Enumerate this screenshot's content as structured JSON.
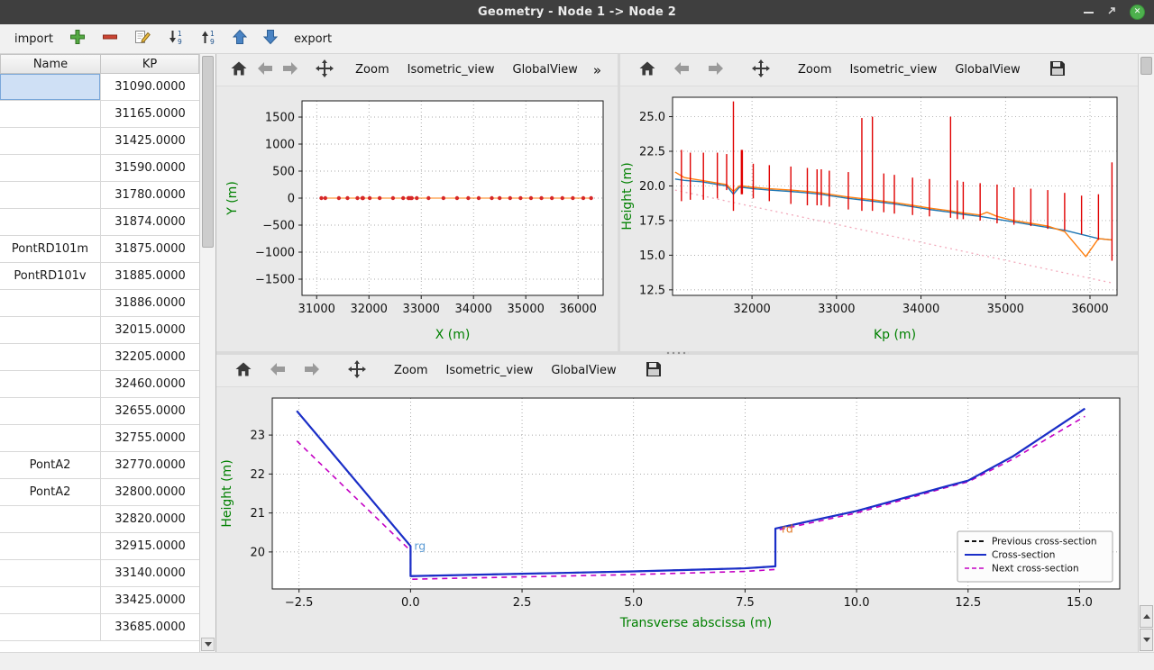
{
  "titlebar": {
    "title": "Geometry - Node 1 -> Node 2"
  },
  "app_toolbar": {
    "import_label": "import",
    "export_label": "export"
  },
  "icons": {
    "add-icon": "green plus",
    "remove-icon": "red minus",
    "edit-icon": "pencil on paper",
    "sort-descending-icon": "down arrow 1-9",
    "sort-ascending-icon": "up arrow 1-9",
    "move-up-icon": "blue up arrow",
    "move-down-icon": "blue down arrow",
    "home-icon": "house",
    "back-icon": "left arrow",
    "forward-icon": "right arrow",
    "pan-icon": "four way arrows",
    "save-icon": "floppy disk",
    "minimize-icon": "dash",
    "maximize-icon": "diagonal arrow",
    "close-icon": "green circle x",
    "scroll-up-icon": "triangle up",
    "scroll-down-icon": "triangle down"
  },
  "mpl_toolbar": {
    "zoom": "Zoom",
    "isometric": "Isometric_view",
    "global_view": "GlobalView",
    "overflow": "»"
  },
  "table": {
    "headers": [
      "Name",
      "KP"
    ],
    "rows": [
      {
        "name": "",
        "kp": "31090.0000"
      },
      {
        "name": "",
        "kp": "31165.0000"
      },
      {
        "name": "",
        "kp": "31425.0000"
      },
      {
        "name": "",
        "kp": "31590.0000"
      },
      {
        "name": "",
        "kp": "31780.0000"
      },
      {
        "name": "",
        "kp": "31874.0000"
      },
      {
        "name": "PontRD101m",
        "kp": "31875.0000"
      },
      {
        "name": "PontRD101v",
        "kp": "31885.0000"
      },
      {
        "name": "",
        "kp": "31886.0000"
      },
      {
        "name": "",
        "kp": "32015.0000"
      },
      {
        "name": "",
        "kp": "32205.0000"
      },
      {
        "name": "",
        "kp": "32460.0000"
      },
      {
        "name": "",
        "kp": "32655.0000"
      },
      {
        "name": "",
        "kp": "32755.0000"
      },
      {
        "name": "PontA2",
        "kp": "32770.0000"
      },
      {
        "name": "PontA2",
        "kp": "32800.0000"
      },
      {
        "name": "",
        "kp": "32820.0000"
      },
      {
        "name": "",
        "kp": "32915.0000"
      },
      {
        "name": "",
        "kp": "33140.0000"
      },
      {
        "name": "",
        "kp": "33425.0000"
      },
      {
        "name": "",
        "kp": "33685.0000"
      }
    ]
  },
  "chart_data": [
    {
      "type": "line",
      "title": "",
      "xlabel": "X (m)",
      "ylabel": "Y (m)",
      "xlim": [
        30720,
        36480
      ],
      "ylim": [
        -1800,
        1800
      ],
      "xticks": [
        31000,
        32000,
        33000,
        34000,
        35000,
        36000
      ],
      "xtick_labels": [
        "31000",
        "32000",
        "33000",
        "34000",
        "35000",
        "36000"
      ],
      "yticks": [
        -1500,
        -1000,
        -500,
        0,
        500,
        1000,
        1500
      ],
      "ytick_labels": [
        "−1500",
        "−1000",
        "−500",
        "0",
        "500",
        "1000",
        "1500"
      ],
      "grid": true,
      "axis_label_color": "#008000",
      "series": [
        {
          "name": "river-axis",
          "type": "line",
          "color": "#ff7f0e",
          "width": 1.1,
          "marker": "o",
          "marker_color": "#d62728",
          "marker_size": 2.2,
          "x": [
            31090,
            31165,
            31425,
            31590,
            31780,
            31874,
            31885,
            31886,
            32015,
            32205,
            32460,
            32655,
            32755,
            32770,
            32800,
            32820,
            32915,
            33140,
            33425,
            33685,
            33900,
            34100,
            34350,
            34500,
            34700,
            34900,
            35100,
            35300,
            35500,
            35700,
            35900,
            36100,
            36250
          ],
          "y": [
            0,
            0,
            0,
            0,
            0,
            0,
            0,
            0,
            0,
            0,
            0,
            0,
            0,
            0,
            0,
            0,
            0,
            0,
            0,
            0,
            0,
            0,
            0,
            0,
            0,
            0,
            0,
            0,
            0,
            0,
            0,
            0,
            0
          ]
        }
      ]
    },
    {
      "type": "line",
      "title": "",
      "xlabel": "Kp (m)",
      "ylabel": "Height (m)",
      "xlim": [
        31060,
        36320
      ],
      "ylim": [
        12.1,
        26.4
      ],
      "xticks": [
        32000,
        33000,
        34000,
        35000,
        36000
      ],
      "xtick_labels": [
        "32000",
        "33000",
        "34000",
        "35000",
        "36000"
      ],
      "yticks": [
        12.5,
        15.0,
        17.5,
        20.0,
        22.5,
        25.0
      ],
      "ytick_labels": [
        "12.5",
        "15.0",
        "17.5",
        "20.0",
        "22.5",
        "25.0"
      ],
      "grid": true,
      "axis_label_color": "#008000",
      "series": [
        {
          "name": "reference-slope",
          "type": "line",
          "color": "#f2a8ba",
          "width": 1.3,
          "dash": "2 4",
          "x": [
            31090,
            36260
          ],
          "y": [
            19.7,
            13.0
          ]
        },
        {
          "name": "bed-left",
          "type": "line",
          "color": "#1f77b4",
          "width": 1.4,
          "x": [
            31090,
            31200,
            31400,
            31600,
            31700,
            31780,
            31850,
            31886,
            32015,
            32205,
            32460,
            32655,
            32820,
            32915,
            33140,
            33425,
            33685,
            33900,
            34100,
            34350,
            34500,
            34700,
            34900,
            35100,
            35300,
            35500,
            35700,
            35900,
            36100,
            36260
          ],
          "y": [
            20.5,
            20.4,
            20.3,
            20.1,
            20.0,
            19.4,
            19.9,
            19.9,
            19.8,
            19.7,
            19.6,
            19.5,
            19.4,
            19.3,
            19.1,
            18.9,
            18.7,
            18.5,
            18.3,
            18.1,
            17.95,
            17.8,
            17.6,
            17.4,
            17.2,
            17.0,
            16.8,
            16.5,
            16.2,
            16.1
          ]
        },
        {
          "name": "bed-right",
          "type": "line",
          "color": "#ff7f0e",
          "width": 1.4,
          "x": [
            31090,
            31200,
            31400,
            31600,
            31700,
            31780,
            31850,
            31886,
            32015,
            32205,
            32460,
            32655,
            32820,
            32915,
            33140,
            33425,
            33685,
            33900,
            34100,
            34350,
            34500,
            34700,
            34780,
            34900,
            35100,
            35300,
            35500,
            35700,
            35950,
            36100,
            36260
          ],
          "y": [
            21.0,
            20.6,
            20.4,
            20.2,
            20.1,
            19.6,
            20.0,
            20.0,
            19.9,
            19.8,
            19.7,
            19.6,
            19.5,
            19.4,
            19.2,
            19.0,
            18.8,
            18.6,
            18.4,
            18.2,
            18.05,
            17.9,
            18.1,
            17.8,
            17.5,
            17.3,
            17.1,
            16.7,
            14.9,
            16.2,
            16.1
          ]
        },
        {
          "name": "cross-section-extents",
          "type": "vlines",
          "color": "#e00000",
          "width": 1.4,
          "data": [
            [
              31165,
              18.9,
              22.6
            ],
            [
              31270,
              19.0,
              22.4
            ],
            [
              31425,
              19.0,
              22.4
            ],
            [
              31590,
              19.1,
              22.4
            ],
            [
              31700,
              19.7,
              22.3
            ],
            [
              31780,
              18.2,
              26.1
            ],
            [
              31874,
              19.4,
              22.6
            ],
            [
              31886,
              19.4,
              22.6
            ],
            [
              32015,
              19.1,
              21.6
            ],
            [
              32205,
              18.9,
              21.5
            ],
            [
              32460,
              18.7,
              21.4
            ],
            [
              32655,
              18.6,
              21.3
            ],
            [
              32770,
              18.6,
              21.2
            ],
            [
              32820,
              18.6,
              21.2
            ],
            [
              32915,
              18.5,
              21.1
            ],
            [
              33140,
              18.3,
              21.0
            ],
            [
              33300,
              18.2,
              24.9
            ],
            [
              33425,
              18.2,
              25.0
            ],
            [
              33560,
              18.1,
              20.9
            ],
            [
              33685,
              18.0,
              20.8
            ],
            [
              33900,
              17.9,
              20.6
            ],
            [
              34100,
              17.8,
              20.5
            ],
            [
              34350,
              17.7,
              25.0
            ],
            [
              34430,
              17.6,
              20.4
            ],
            [
              34500,
              17.6,
              20.3
            ],
            [
              34700,
              17.5,
              20.2
            ],
            [
              34900,
              17.3,
              20.1
            ],
            [
              35100,
              17.2,
              19.9
            ],
            [
              35300,
              17.1,
              19.8
            ],
            [
              35500,
              16.9,
              19.7
            ],
            [
              35700,
              16.8,
              19.5
            ],
            [
              35900,
              16.5,
              19.3
            ],
            [
              36100,
              16.1,
              19.4
            ],
            [
              36260,
              14.6,
              21.7
            ]
          ]
        }
      ]
    },
    {
      "type": "line",
      "title": "",
      "xlabel": "Transverse abscissa (m)",
      "ylabel": "Height (m)",
      "xlim": [
        -3.1,
        15.9
      ],
      "ylim": [
        19.05,
        23.95
      ],
      "xticks": [
        -2.5,
        0,
        2.5,
        5,
        7.5,
        10,
        12.5,
        15
      ],
      "xtick_labels": [
        "−2.5",
        "0.0",
        "2.5",
        "5.0",
        "7.5",
        "10.0",
        "12.5",
        "15.0"
      ],
      "yticks": [
        20,
        21,
        22,
        23
      ],
      "ytick_labels": [
        "20",
        "21",
        "22",
        "23"
      ],
      "grid": true,
      "axis_label_color": "#008000",
      "series": [
        {
          "name": "previous-cross-section",
          "type": "line",
          "color": "#111111",
          "width": 1.8,
          "dash": "6 4",
          "x": [
            -2.55,
            0,
            0,
            2.5,
            5,
            7.5,
            8.18,
            8.18,
            10,
            12,
            12.5,
            13.5,
            15.12
          ],
          "y": [
            23.62,
            20.15,
            19.38,
            19.44,
            19.5,
            19.58,
            19.63,
            20.6,
            21.05,
            21.68,
            21.83,
            22.45,
            23.68
          ]
        },
        {
          "name": "next-cross-section",
          "type": "line",
          "color": "#c400c4",
          "width": 1.6,
          "dash": "6 5",
          "x": [
            -2.55,
            0,
            0,
            2.5,
            5,
            7.5,
            8.18,
            8.18,
            10,
            12,
            12.5,
            13.5,
            15.12
          ],
          "y": [
            22.85,
            20.03,
            19.3,
            19.36,
            19.42,
            19.5,
            19.55,
            20.55,
            21.0,
            21.65,
            21.8,
            22.38,
            23.48
          ]
        },
        {
          "name": "cross-section",
          "type": "line",
          "color": "#1a2ec8",
          "width": 2.2,
          "x": [
            -2.55,
            0,
            0,
            2.5,
            5,
            7.5,
            8.18,
            8.18,
            10,
            12,
            12.5,
            13.5,
            15.12
          ],
          "y": [
            23.62,
            20.15,
            19.38,
            19.44,
            19.5,
            19.58,
            19.63,
            20.6,
            21.05,
            21.68,
            21.83,
            22.45,
            23.68
          ]
        }
      ],
      "annotations": [
        {
          "x": 0.08,
          "y": 20.05,
          "text": "rg",
          "color": "#5b9bd5"
        },
        {
          "x": 8.32,
          "y": 20.5,
          "text": "rd",
          "color": "#e07b28"
        }
      ],
      "legend": {
        "position": "lower right",
        "entries": [
          {
            "label": "Previous cross-section",
            "color": "#111111",
            "dash": "5 3",
            "width": 2
          },
          {
            "label": "Cross-section",
            "color": "#1a2ec8",
            "dash": "",
            "width": 2
          },
          {
            "label": "Next cross-section",
            "color": "#c400c4",
            "dash": "5 3",
            "width": 1.6
          }
        ]
      }
    }
  ]
}
